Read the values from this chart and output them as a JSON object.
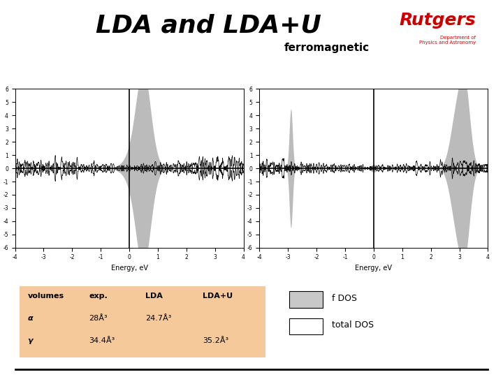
{
  "title": "LDA and LDA+U",
  "subtitle": "ferromagnetic",
  "background_color": "#ffffff",
  "table_bg_color": "#f5c99a",
  "table_header": [
    "volumes",
    "exp.",
    "LDA",
    "LDA+U"
  ],
  "table_rows": [
    [
      "α",
      "28Å³",
      "24.7Å³",
      ""
    ],
    [
      "γ",
      "34.4Å³",
      "",
      "35.2Å³"
    ]
  ],
  "legend_items": [
    {
      "label": "f DOS",
      "color": "#c8c8c8"
    },
    {
      "label": "total DOS",
      "color": "#ffffff"
    }
  ],
  "plot1_xlabel": "Energy, eV",
  "plot2_xlabel": "Energy, eV",
  "ylim": [
    -6,
    6
  ],
  "xlim": [
    -4,
    4
  ],
  "yticks": [
    -6,
    -5,
    -4,
    -3,
    -2,
    -1,
    0,
    1,
    2,
    3,
    4,
    5,
    6
  ],
  "xticks": [
    -4,
    -3,
    -2,
    -1,
    0,
    1,
    2,
    3,
    4
  ]
}
